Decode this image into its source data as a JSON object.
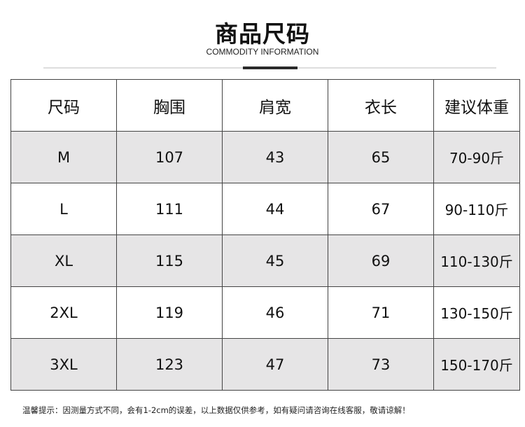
{
  "header": {
    "title": "商品尺码",
    "subtitle": "COMMODITY INFORMATION"
  },
  "table": {
    "columns": [
      "尺码",
      "胸围",
      "肩宽",
      "衣长",
      "建议体重"
    ],
    "rows": [
      [
        "M",
        "107",
        "43",
        "65",
        "70-90斤"
      ],
      [
        "L",
        "111",
        "44",
        "67",
        "90-110斤"
      ],
      [
        "XL",
        "115",
        "45",
        "69",
        "110-130斤"
      ],
      [
        "2XL",
        "119",
        "46",
        "71",
        "130-150斤"
      ],
      [
        "3XL",
        "123",
        "47",
        "73",
        "150-170斤"
      ]
    ]
  },
  "colors": {
    "shaded_row": "#e6e5e6",
    "border": "#444444"
  },
  "footer": {
    "note": "温馨提示：因测量方式不同，会有1-2cm的误差，以上数据仅供参考，如有疑问请咨询在线客服，敬请谅解！"
  }
}
